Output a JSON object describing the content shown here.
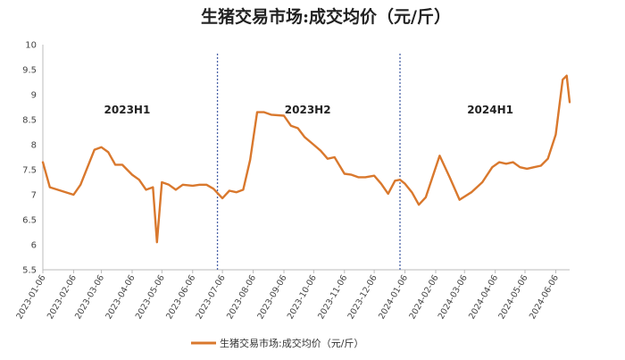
{
  "chart_data": {
    "type": "line",
    "title": "生猪交易市场:成交均价（元/斤）",
    "legend": "生猪交易市场:成交均价（元/斤）",
    "legend_position": "bottom",
    "line_color": "#d9782d",
    "divider_color": "#4a63a8",
    "ylim": [
      5.5,
      10
    ],
    "yticks": [
      "5.5",
      "6",
      "6.5",
      "7",
      "7.5",
      "8",
      "8.5",
      "9",
      "9.5",
      "10"
    ],
    "grid": false,
    "xticks": [
      "2023-01-06",
      "2023-02-06",
      "2023-03-06",
      "2023-04-06",
      "2023-05-06",
      "2023-06-06",
      "2023-07-06",
      "2023-08-06",
      "2023-09-06",
      "2023-10-06",
      "2023-11-06",
      "2023-12-06",
      "2024-01-06",
      "2024-02-06",
      "2024-03-06",
      "2024-04-06",
      "2024-05-06",
      "2024-06-06"
    ],
    "xlim": [
      "2023-01-06",
      "2024-06-20"
    ],
    "annotations": [
      {
        "text": "2023H1",
        "x": "2023-04-01",
        "y": 8.7
      },
      {
        "text": "2023H2",
        "x": "2023-09-30",
        "y": 8.7
      },
      {
        "text": "2024H1",
        "x": "2024-04-01",
        "y": 8.7
      }
    ],
    "dividers": [
      "2023-07-01",
      "2024-01-01"
    ],
    "series": [
      {
        "name": "生猪交易市场:成交均价（元/斤）",
        "points": [
          [
            "2023-01-06",
            7.65
          ],
          [
            "2023-01-13",
            7.15
          ],
          [
            "2023-02-06",
            7.0
          ],
          [
            "2023-02-13",
            7.2
          ],
          [
            "2023-02-27",
            7.9
          ],
          [
            "2023-03-06",
            7.95
          ],
          [
            "2023-03-13",
            7.85
          ],
          [
            "2023-03-20",
            7.6
          ],
          [
            "2023-03-27",
            7.6
          ],
          [
            "2023-04-06",
            7.4
          ],
          [
            "2023-04-13",
            7.3
          ],
          [
            "2023-04-20",
            7.1
          ],
          [
            "2023-04-27",
            7.15
          ],
          [
            "2023-05-01",
            6.05
          ],
          [
            "2023-05-06",
            7.25
          ],
          [
            "2023-05-13",
            7.2
          ],
          [
            "2023-05-20",
            7.1
          ],
          [
            "2023-05-27",
            7.2
          ],
          [
            "2023-06-06",
            7.18
          ],
          [
            "2023-06-13",
            7.2
          ],
          [
            "2023-06-20",
            7.2
          ],
          [
            "2023-06-27",
            7.12
          ],
          [
            "2023-07-06",
            6.93
          ],
          [
            "2023-07-13",
            7.08
          ],
          [
            "2023-07-20",
            7.05
          ],
          [
            "2023-07-27",
            7.1
          ],
          [
            "2023-08-03",
            7.7
          ],
          [
            "2023-08-10",
            8.65
          ],
          [
            "2023-08-17",
            8.65
          ],
          [
            "2023-08-24",
            8.6
          ],
          [
            "2023-09-06",
            8.58
          ],
          [
            "2023-09-13",
            8.38
          ],
          [
            "2023-09-20",
            8.33
          ],
          [
            "2023-09-27",
            8.15
          ],
          [
            "2023-10-06",
            8.0
          ],
          [
            "2023-10-13",
            7.88
          ],
          [
            "2023-10-20",
            7.72
          ],
          [
            "2023-10-27",
            7.75
          ],
          [
            "2023-11-06",
            7.42
          ],
          [
            "2023-11-13",
            7.4
          ],
          [
            "2023-11-20",
            7.35
          ],
          [
            "2023-11-27",
            7.35
          ],
          [
            "2023-12-06",
            7.38
          ],
          [
            "2023-12-13",
            7.22
          ],
          [
            "2023-12-20",
            7.02
          ],
          [
            "2023-12-27",
            7.28
          ],
          [
            "2024-01-01",
            7.3
          ],
          [
            "2024-01-06",
            7.22
          ],
          [
            "2024-01-13",
            7.05
          ],
          [
            "2024-01-20",
            6.8
          ],
          [
            "2024-01-27",
            6.95
          ],
          [
            "2024-02-10",
            7.78
          ],
          [
            "2024-02-20",
            7.35
          ],
          [
            "2024-03-01",
            6.9
          ],
          [
            "2024-03-13",
            7.05
          ],
          [
            "2024-03-24",
            7.25
          ],
          [
            "2024-04-03",
            7.55
          ],
          [
            "2024-04-10",
            7.65
          ],
          [
            "2024-04-17",
            7.62
          ],
          [
            "2024-04-24",
            7.65
          ],
          [
            "2024-05-01",
            7.55
          ],
          [
            "2024-05-08",
            7.52
          ],
          [
            "2024-05-15",
            7.55
          ],
          [
            "2024-05-22",
            7.58
          ],
          [
            "2024-05-29",
            7.72
          ],
          [
            "2024-06-06",
            8.2
          ],
          [
            "2024-06-13",
            9.3
          ],
          [
            "2024-06-17",
            9.38
          ],
          [
            "2024-06-20",
            8.85
          ]
        ]
      }
    ]
  }
}
